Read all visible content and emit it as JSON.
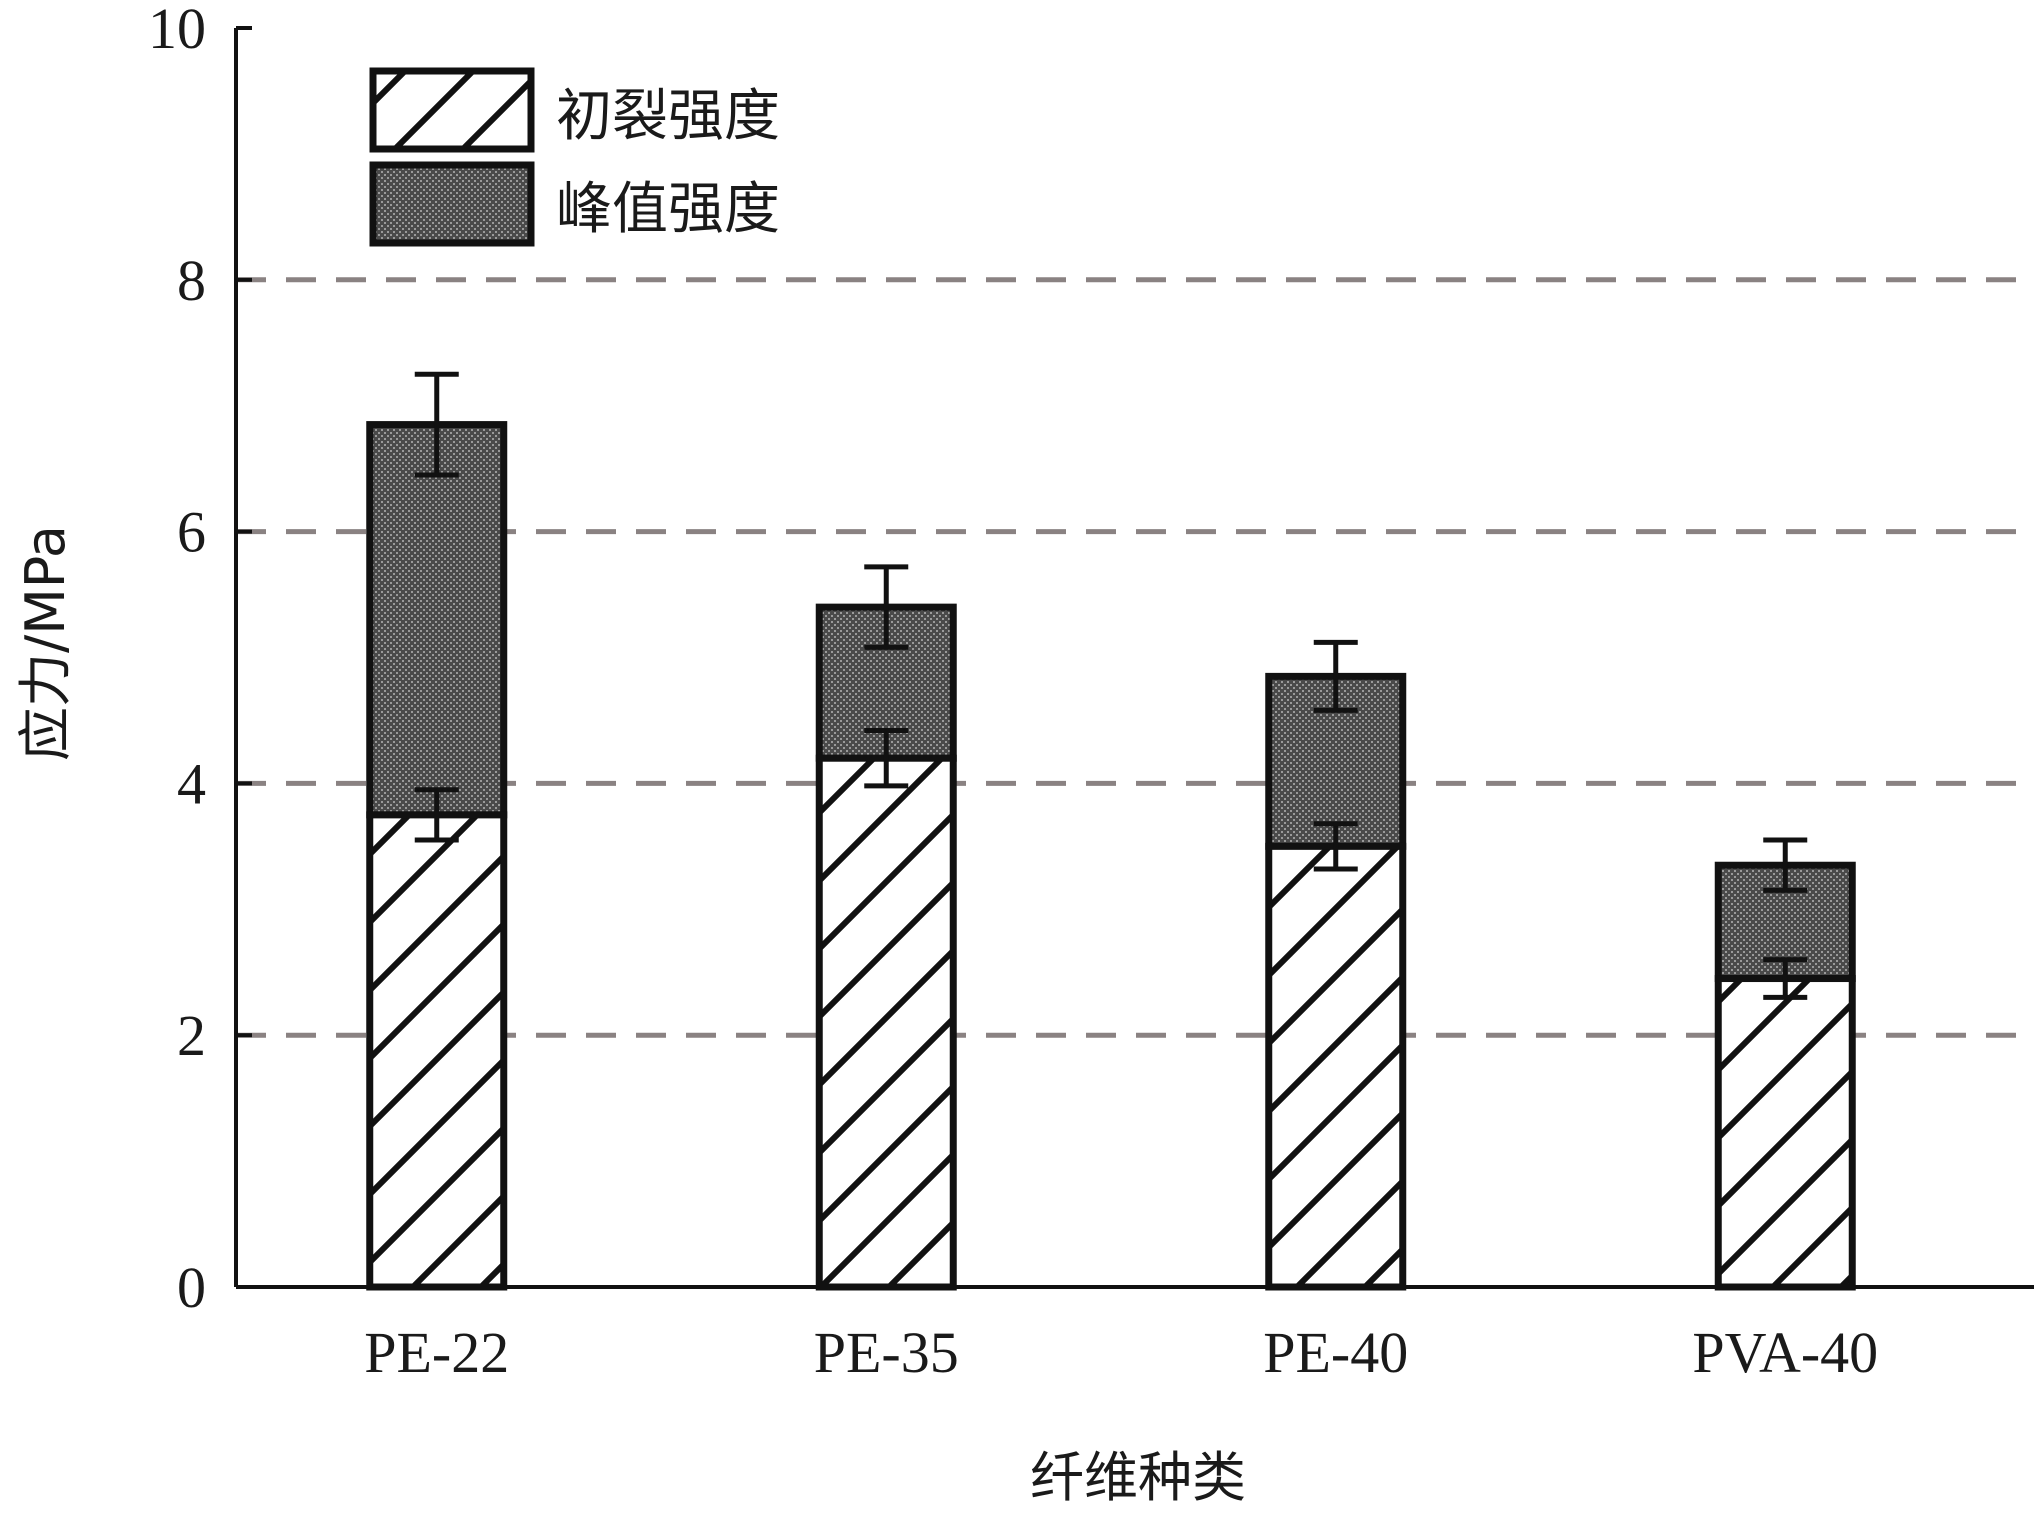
{
  "chart_data": {
    "type": "bar",
    "stacked": true,
    "xlabel": "纤维种类",
    "ylabel": "应力/MPa",
    "ylim": [
      0,
      10
    ],
    "yticks": [
      "0",
      "2",
      "4",
      "6",
      "8",
      "10"
    ],
    "grid": "dashed horizontal at 2, 4, 6, 8",
    "legend_position": "top-left",
    "categories": [
      "PE-22",
      "PE-35",
      "PE-40",
      "PVA-40"
    ],
    "series": [
      {
        "name": "初裂强度",
        "pattern": "diagonal-hatch",
        "values": [
          3.75,
          4.2,
          3.5,
          2.45
        ],
        "errors": [
          0.2,
          0.22,
          0.18,
          0.15
        ]
      },
      {
        "name": "峰值强度",
        "pattern": "dark-stipple",
        "total_values": [
          6.85,
          5.4,
          4.85,
          3.35
        ],
        "errors": [
          0.4,
          0.32,
          0.27,
          0.2
        ]
      }
    ],
    "colors": {
      "grid": "#8a8282",
      "stipple": "#3a3a3a",
      "outline": "#111111"
    }
  }
}
